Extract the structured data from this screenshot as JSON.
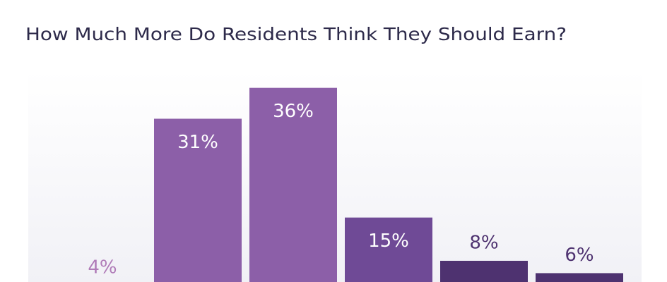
{
  "chart_data": {
    "type": "bar",
    "title": "How Much More Do Residents Think They Should Earn?",
    "values": [
      4,
      31,
      36,
      15,
      8,
      6
    ],
    "value_labels": [
      "4%",
      "31%",
      "36%",
      "15%",
      "8%",
      "6%"
    ],
    "colors": [
      "#b07cb8",
      "#8c5fa8",
      "#8c5fa8",
      "#6f4a96",
      "#4e3270",
      "#4e3270"
    ],
    "grid": false
  }
}
